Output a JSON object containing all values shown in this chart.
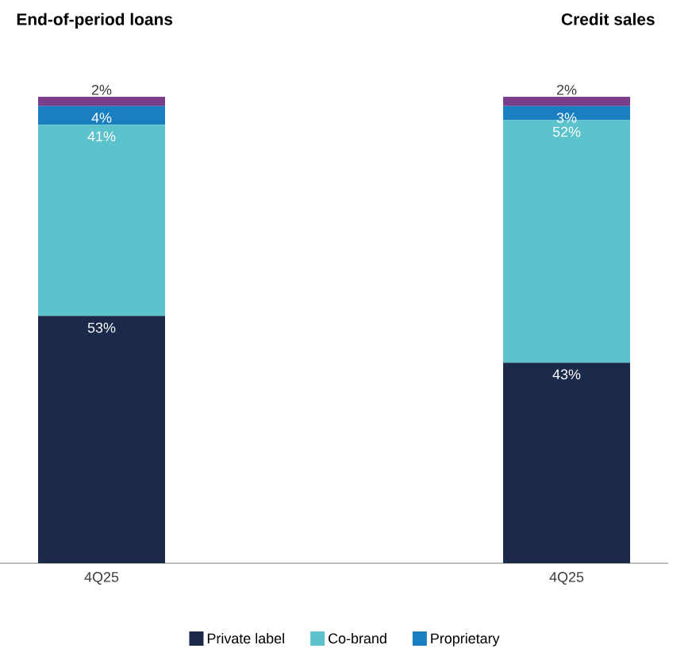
{
  "chart_data": {
    "type": "bar",
    "stacked": true,
    "categories": [
      "4Q25",
      "4Q25"
    ],
    "legend": "bottom",
    "data_labels": true,
    "tick_labels": "x",
    "annotations": [
      "End-of-period loans",
      "Credit sales"
    ],
    "series": [
      {
        "name": "Private label",
        "color": "#1b2a4a",
        "values": [
          53,
          43
        ],
        "value_labels": [
          "53%",
          "43%"
        ]
      },
      {
        "name": "Co-brand",
        "color": "#5cc3cd",
        "values": [
          41,
          52
        ],
        "value_labels": [
          "41%",
          "52%"
        ]
      },
      {
        "name": "Proprietary",
        "color": "#1a7fc1",
        "values": [
          4,
          3
        ],
        "value_labels": [
          "4%",
          "3%"
        ]
      },
      {
        "color": "#7a3f8a",
        "values": [
          2,
          2
        ],
        "value_labels": [
          "2%",
          "2%"
        ]
      }
    ]
  }
}
